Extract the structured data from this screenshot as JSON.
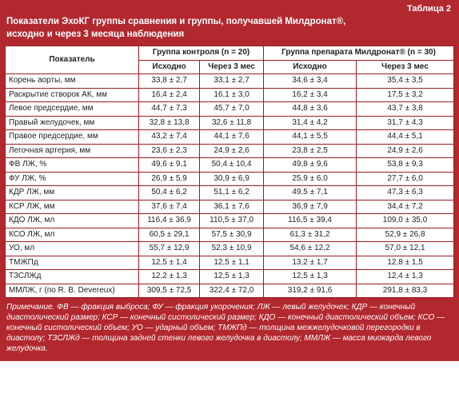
{
  "table_label": "Таблица 2",
  "title_line1": "Показатели ЭхоКГ группы сравнения и группы, получавшей Милдронат®,",
  "title_line2": "исходно и через 3 месяца наблюдения",
  "headers": {
    "param": "Показатель",
    "control": "Группа контроля (n = 20)",
    "drug": "Группа препарата Милдронат® (n = 30)",
    "baseline": "Исходно",
    "after": "Через 3 мес"
  },
  "rows": [
    {
      "p": "Корень аорты, мм",
      "c1": "33,8 ± 2,7",
      "c2": "33,1 ± 2,7",
      "d1": "34,6 ± 3,4",
      "d2": "35,4 ± 3,5"
    },
    {
      "p": "Раскрытие створок АК, мм",
      "c1": "16,4 ± 2,4",
      "c2": "16,1 ± 3,0",
      "d1": "16,2 ± 3,4",
      "d2": "17,5 ± 3,2"
    },
    {
      "p": "Левое предсердие, мм",
      "c1": "44,7 ± 7,3",
      "c2": "45,7 ± 7,0",
      "d1": "44,8 ± 3,6",
      "d2": "43,7 ± 3,8"
    },
    {
      "p": "Правый желудочек, мм",
      "c1": "32,8 ± 13,8",
      "c2": "32,6 ± 11,8",
      "d1": "31,4 ± 4,2",
      "d2": "31,7 ± 4,3"
    },
    {
      "p": "Правое предсердие, мм",
      "c1": "43,2 ± 7,4",
      "c2": "44,1 ± 7,6",
      "d1": "44,1 ± 5,5",
      "d2": "44,4 ± 5,1"
    },
    {
      "p": "Легочная артерия, мм",
      "c1": "23,6 ± 2,3",
      "c2": "24,9 ± 2,6",
      "d1": "23,8 ± 2,5",
      "d2": "24,9 ± 2,6"
    },
    {
      "p": "ФВ ЛЖ, %",
      "c1": "49,6 ± 9,1",
      "c2": "50,4 ± 10,4",
      "d1": "49,8 ± 9,6",
      "d2": "53,8 ± 9,3"
    },
    {
      "p": "ФУ ЛЖ, %",
      "c1": "26,9 ± 5,9",
      "c2": "30,9 ± 6,9",
      "d1": "25,9 ± 6,0",
      "d2": "27,7 ± 6,0"
    },
    {
      "p": "КДР ЛЖ, мм",
      "c1": "50,4 ± 6,2",
      "c2": "51,1 ± 6,2",
      "d1": "49,5 ± 7,1",
      "d2": "47,3 ± 6,3"
    },
    {
      "p": "КСР ЛЖ, мм",
      "c1": "37,6 ± 7,4",
      "c2": "36,1 ± 7,6",
      "d1": "36,9 ± 7,9",
      "d2": "34,4 ± 7,2"
    },
    {
      "p": "КДО ЛЖ, мл",
      "c1": "116,4 ± 36,9",
      "c2": "110,5 ± 37,0",
      "d1": "116,5 ± 39,4",
      "d2": "109,0 ± 35,0"
    },
    {
      "p": "КСО ЛЖ, мл",
      "c1": "60,5 ± 29,1",
      "c2": "57,5 ± 30,9",
      "d1": "61,3 ± 31,2",
      "d2": "52,9 ± 26,8"
    },
    {
      "p": "УО, мл",
      "c1": "55,7 ± 12,9",
      "c2": "52,3 ± 10,9",
      "d1": "54,6 ± 12,2",
      "d2": "57,0 ± 12,1"
    },
    {
      "p": "ТМЖПд",
      "c1": "12,5 ± 1,4",
      "c2": "12,5 ± 1,1",
      "d1": "13,2 ± 1,7",
      "d2": "12,8 ± 1,5"
    },
    {
      "p": "ТЗСЛЖд",
      "c1": "12,2 ± 1,3",
      "c2": "12,5 ± 1,3",
      "d1": "12,5 ± 1,3",
      "d2": "12,4 ± 1,3"
    },
    {
      "p": "ММЛЖ, г (по R. B. Devereux)",
      "c1": "309,5 ± 72,5",
      "c2": "322,4 ± 72,0",
      "d1": "319,2 ± 91,6",
      "d2": "291,8 ± 83,3"
    }
  ],
  "note": "Примечание. ФВ — фракция выброса; ФУ — фракция укорочения; ЛЖ — левый желудочек; КДР — конечный диастолический размер; КСР — конечный систолический размер; КДО — конечный диастолический объем; КСО — конечный систолический объем; УО — ударный объем; ТМЖПд — толщина межжелудочковой перегородки в диастолу; ТЗСЛЖд — толщина задней стенки левого желудочка в диастолу; ММЛЖ — масса миокарда левого желудочка."
}
